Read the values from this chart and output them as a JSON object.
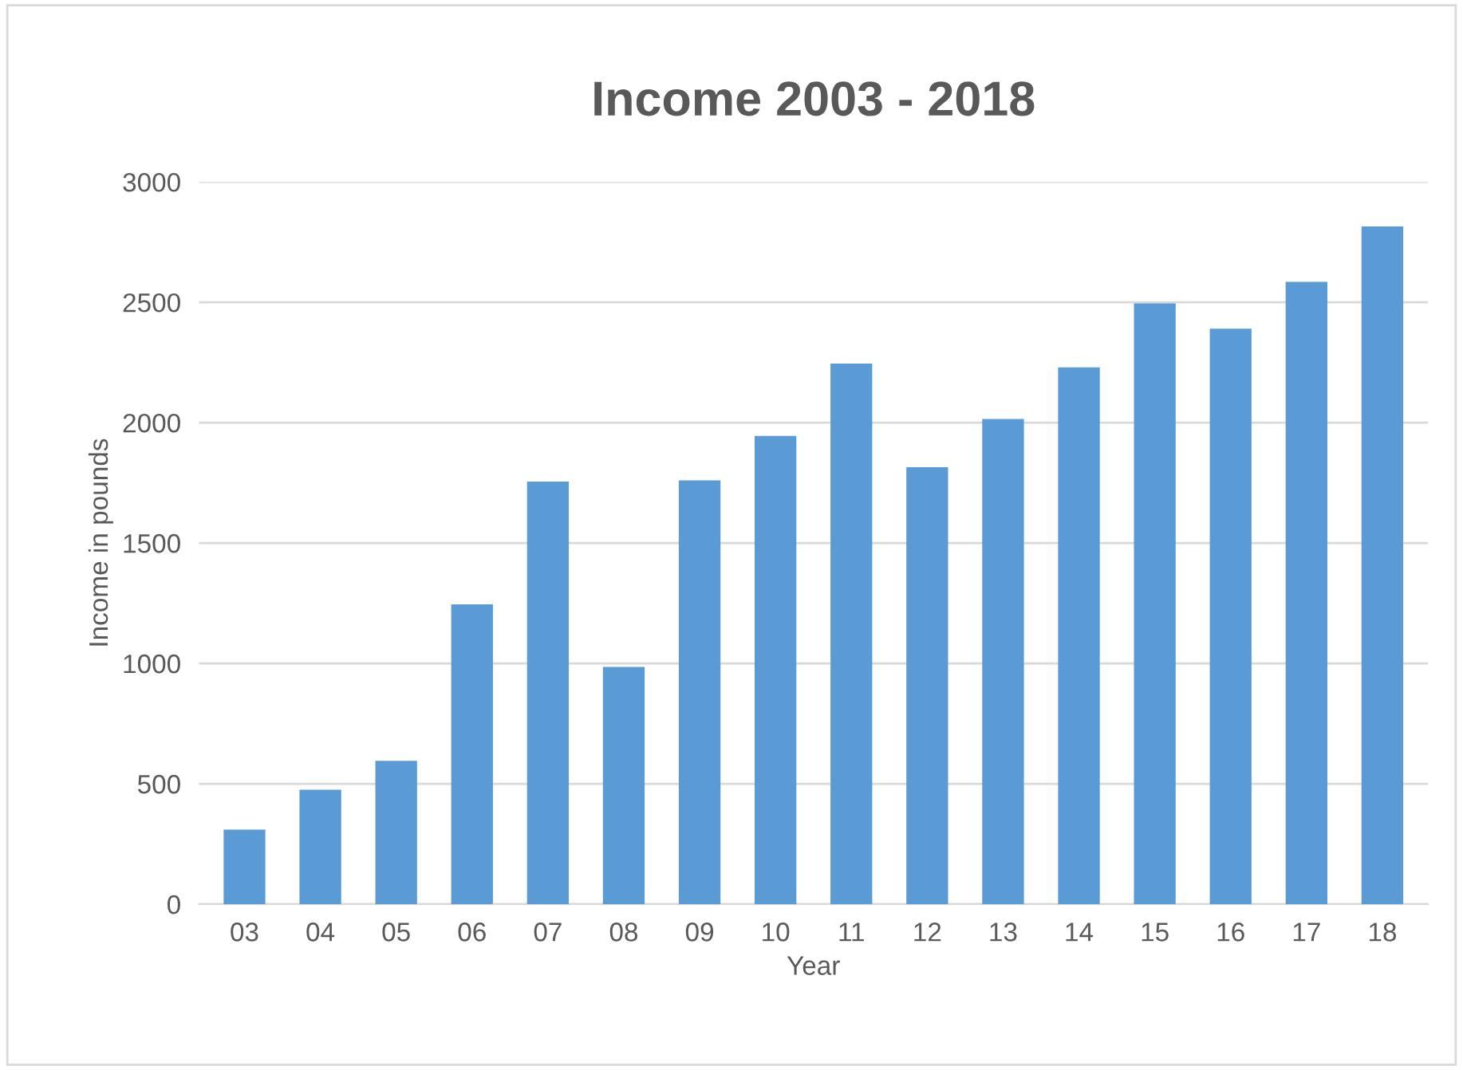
{
  "chart_data": {
    "type": "bar",
    "title": "Income 2003 - 2018",
    "xlabel": "Year",
    "ylabel": "Income in pounds",
    "categories": [
      "03",
      "04",
      "05",
      "06",
      "07",
      "08",
      "09",
      "10",
      "11",
      "12",
      "13",
      "14",
      "15",
      "16",
      "17",
      "18"
    ],
    "values": [
      310,
      475,
      595,
      1245,
      1755,
      985,
      1760,
      1945,
      2245,
      1815,
      2015,
      2230,
      2495,
      2390,
      2585,
      2815
    ],
    "color": "#5b9bd5",
    "ylim": [
      0,
      3000
    ],
    "yticks": [
      0,
      500,
      1000,
      1500,
      2000,
      2500,
      3000
    ],
    "grid": "y"
  }
}
